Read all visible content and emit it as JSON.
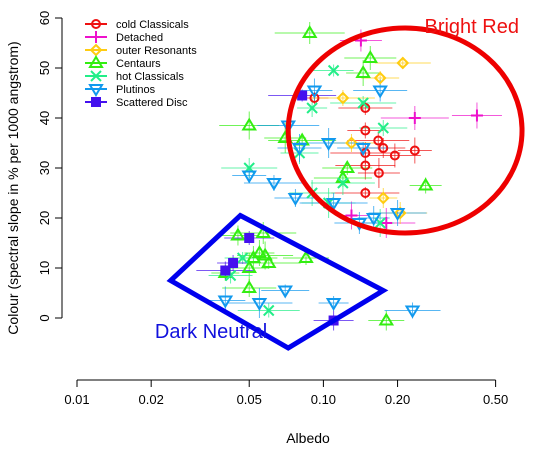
{
  "chart_data": {
    "type": "scatter",
    "xlabel": "Albedo",
    "ylabel": "Colour (spectral slope in % per 1000 angstrom)",
    "x_scale": "log",
    "x_ticks": [
      0.01,
      0.02,
      0.05,
      0.1,
      0.2,
      0.5
    ],
    "x_tick_labels": [
      "0.01",
      "0.02",
      "0.05",
      "0.10",
      "0.20",
      "0.50"
    ],
    "xlim": [
      0.01,
      0.75
    ],
    "y_ticks": [
      0,
      10,
      20,
      30,
      40,
      50,
      60
    ],
    "y_tick_labels": [
      "0",
      "10",
      "20",
      "30",
      "40",
      "50",
      "60"
    ],
    "ylim": [
      -10,
      62
    ],
    "grid": false,
    "legend_position": "top-left",
    "annotations": [
      {
        "text": "Bright Red",
        "x": 0.4,
        "y": 57,
        "color": "#ee1111"
      },
      {
        "text": "Dark Neutral",
        "x": 0.035,
        "y": -4,
        "color": "#1111dd"
      }
    ],
    "regions": [
      {
        "label": "Bright Red",
        "shape": "ellipse",
        "color": "#ee0000",
        "center": [
          0.145,
          37.5
        ],
        "x_range": [
          0.072,
          0.64
        ],
        "y_range": [
          17,
          58
        ]
      },
      {
        "label": "Dark Neutral",
        "shape": "polygon",
        "color": "#0000ee",
        "vertices": [
          [
            0.046,
            20.5
          ],
          [
            0.175,
            5.5
          ],
          [
            0.072,
            -6
          ],
          [
            0.024,
            7.5
          ]
        ]
      }
    ],
    "series": [
      {
        "name": "cold Classicals",
        "color": "#ee1111",
        "marker": "circle",
        "points": [
          [
            0.092,
            44
          ],
          [
            0.148,
            42
          ],
          [
            0.148,
            37.5
          ],
          [
            0.167,
            35.5
          ],
          [
            0.175,
            34
          ],
          [
            0.148,
            33
          ],
          [
            0.195,
            32.5
          ],
          [
            0.235,
            33.5
          ],
          [
            0.148,
            30.5
          ],
          [
            0.168,
            29
          ],
          [
            0.148,
            25
          ]
        ]
      },
      {
        "name": "Detached",
        "color": "#ee11cc",
        "marker": "plus",
        "points": [
          [
            0.142,
            55.5
          ],
          [
            0.235,
            40
          ],
          [
            0.42,
            40.5
          ],
          [
            0.13,
            20.5
          ],
          [
            0.18,
            19
          ]
        ]
      },
      {
        "name": "outer Resonants",
        "color": "#ffcc11",
        "marker": "diamond",
        "points": [
          [
            0.21,
            51
          ],
          [
            0.17,
            48
          ],
          [
            0.12,
            44
          ],
          [
            0.13,
            35
          ],
          [
            0.175,
            24
          ],
          [
            0.205,
            21
          ]
        ]
      },
      {
        "name": "Centaurs",
        "color": "#33ee11",
        "marker": "triangle-up",
        "points": [
          [
            0.088,
            57
          ],
          [
            0.155,
            52
          ],
          [
            0.145,
            49
          ],
          [
            0.05,
            38.5
          ],
          [
            0.07,
            36
          ],
          [
            0.082,
            35.5
          ],
          [
            0.125,
            30
          ],
          [
            0.26,
            26.5
          ],
          [
            0.12,
            28
          ],
          [
            0.045,
            16.5
          ],
          [
            0.057,
            17
          ],
          [
            0.052,
            12
          ],
          [
            0.055,
            13
          ],
          [
            0.058,
            12.5
          ],
          [
            0.05,
            10
          ],
          [
            0.06,
            11
          ],
          [
            0.085,
            12
          ],
          [
            0.04,
            9
          ],
          [
            0.05,
            6
          ],
          [
            0.18,
            -0.5
          ]
        ]
      },
      {
        "name": "hot Classicals",
        "color": "#22ee88",
        "marker": "x",
        "points": [
          [
            0.11,
            49.5
          ],
          [
            0.145,
            43
          ],
          [
            0.175,
            38
          ],
          [
            0.09,
            42
          ],
          [
            0.05,
            30
          ],
          [
            0.08,
            33
          ],
          [
            0.12,
            27
          ],
          [
            0.09,
            25
          ],
          [
            0.17,
            19
          ],
          [
            0.105,
            23
          ],
          [
            0.047,
            12
          ],
          [
            0.06,
            1.5
          ],
          [
            0.042,
            8.5
          ]
        ]
      },
      {
        "name": "Plutinos",
        "color": "#1199ee",
        "marker": "triangle-down",
        "points": [
          [
            0.17,
            45.5
          ],
          [
            0.092,
            45.5
          ],
          [
            0.072,
            38.5
          ],
          [
            0.08,
            34
          ],
          [
            0.105,
            35
          ],
          [
            0.145,
            34
          ],
          [
            0.05,
            28.5
          ],
          [
            0.063,
            27
          ],
          [
            0.077,
            24
          ],
          [
            0.11,
            23
          ],
          [
            0.14,
            19
          ],
          [
            0.16,
            20
          ],
          [
            0.2,
            21
          ],
          [
            0.04,
            3.5
          ],
          [
            0.055,
            3
          ],
          [
            0.07,
            5.5
          ],
          [
            0.11,
            3
          ],
          [
            0.23,
            1.5
          ]
        ]
      },
      {
        "name": "Scattered Disc",
        "color": "#4411ee",
        "marker": "square",
        "points": [
          [
            0.082,
            44.5
          ],
          [
            0.05,
            16
          ],
          [
            0.043,
            11
          ],
          [
            0.04,
            9.5
          ],
          [
            0.11,
            -0.5
          ]
        ]
      }
    ]
  }
}
